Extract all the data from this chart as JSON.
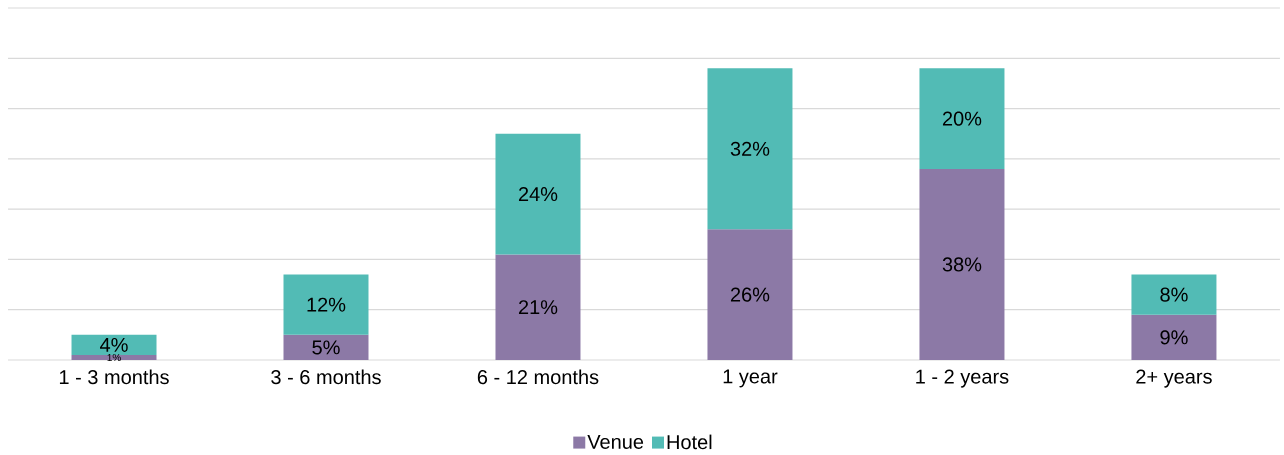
{
  "chart_data": {
    "type": "bar",
    "stacked": true,
    "categories": [
      "1 - 3 months",
      "3 - 6 months",
      "6 - 12 months",
      "1 year",
      "1 - 2 years",
      "2+ years"
    ],
    "series": [
      {
        "name": "Venue",
        "color": "#8c79a6",
        "values": [
          1,
          5,
          21,
          26,
          38,
          9
        ],
        "value_labels": [
          "1%",
          "5%",
          "21%",
          "26%",
          "38%",
          "9%"
        ]
      },
      {
        "name": "Hotel",
        "color": "#52bbb5",
        "values": [
          4,
          12,
          24,
          32,
          20,
          8
        ],
        "value_labels": [
          "4%",
          "12%",
          "24%",
          "32%",
          "20%",
          "8%"
        ]
      }
    ],
    "ylim": [
      0,
      70
    ],
    "yticks": [
      {
        "value": 0,
        "label": null
      },
      {
        "value": 10,
        "label": null
      },
      {
        "value": 20,
        "label": null
      },
      {
        "value": 30,
        "label": null
      },
      {
        "value": 40,
        "label": null
      },
      {
        "value": 50,
        "label": null
      },
      {
        "value": 60,
        "label": null
      },
      {
        "value": 70,
        "label": null
      }
    ],
    "tick_labels": "x",
    "grid": "y",
    "legend": "bottom"
  }
}
